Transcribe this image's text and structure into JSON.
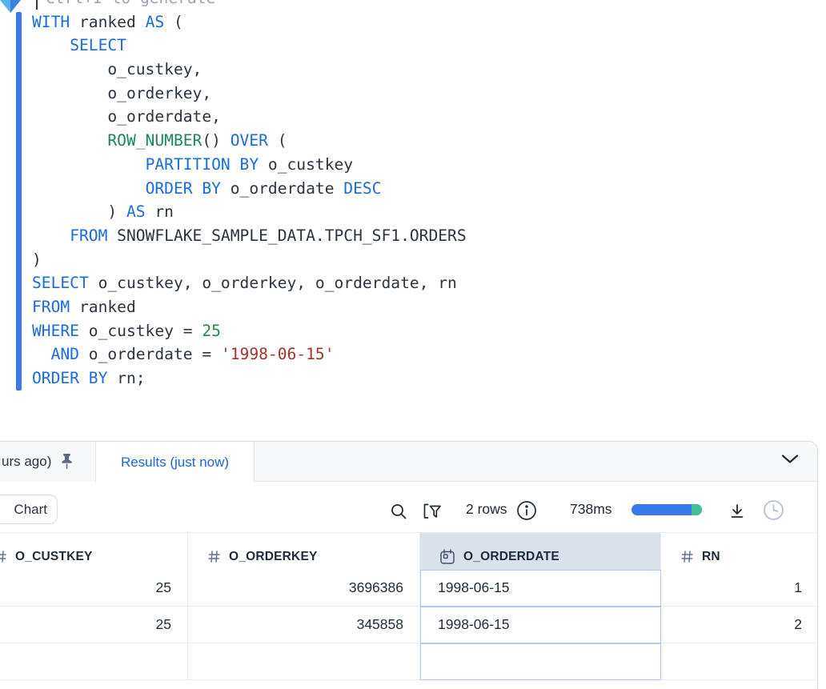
{
  "editor": {
    "assist_hint": "Ctrl+I to generate",
    "syntax_colors": {
      "keyword": "#1A6CE0",
      "function": "#1E8468",
      "number": "#1F8A4C",
      "string": "#A3342A",
      "plain": "#2B3440",
      "hint": "#9AA4B2",
      "selection_gutter_bar": "#3D78E8"
    },
    "code_lines": [
      [
        {
          "t": "WITH",
          "c": "kw"
        },
        {
          "t": " ranked ",
          "c": "pl"
        },
        {
          "t": "AS",
          "c": "kw"
        },
        {
          "t": " (",
          "c": "pl"
        }
      ],
      [
        {
          "t": "    ",
          "c": "pl"
        },
        {
          "t": "SELECT",
          "c": "kw"
        }
      ],
      [
        {
          "t": "        o_custkey,",
          "c": "pl"
        }
      ],
      [
        {
          "t": "        o_orderkey,",
          "c": "pl"
        }
      ],
      [
        {
          "t": "        o_orderdate,",
          "c": "pl"
        }
      ],
      [
        {
          "t": "        ",
          "c": "pl"
        },
        {
          "t": "ROW_NUMBER",
          "c": "fn"
        },
        {
          "t": "() ",
          "c": "pl"
        },
        {
          "t": "OVER",
          "c": "kw"
        },
        {
          "t": " (",
          "c": "pl"
        }
      ],
      [
        {
          "t": "            ",
          "c": "pl"
        },
        {
          "t": "PARTITION BY",
          "c": "kw"
        },
        {
          "t": " o_custkey",
          "c": "pl"
        }
      ],
      [
        {
          "t": "            ",
          "c": "pl"
        },
        {
          "t": "ORDER BY",
          "c": "kw"
        },
        {
          "t": " o_orderdate ",
          "c": "pl"
        },
        {
          "t": "DESC",
          "c": "kw"
        }
      ],
      [
        {
          "t": "        ) ",
          "c": "pl"
        },
        {
          "t": "AS",
          "c": "kw"
        },
        {
          "t": " rn",
          "c": "pl"
        }
      ],
      [
        {
          "t": "    ",
          "c": "pl"
        },
        {
          "t": "FROM",
          "c": "kw"
        },
        {
          "t": " SNOWFLAKE_SAMPLE_DATA.TPCH_SF1.ORDERS",
          "c": "pl"
        }
      ],
      [
        {
          "t": ")",
          "c": "pl"
        }
      ],
      [
        {
          "t": "SELECT",
          "c": "kw"
        },
        {
          "t": " o_custkey, o_orderkey, o_orderdate, rn",
          "c": "pl"
        }
      ],
      [
        {
          "t": "FROM",
          "c": "kw"
        },
        {
          "t": " ranked",
          "c": "pl"
        }
      ],
      [
        {
          "t": "WHERE",
          "c": "kw"
        },
        {
          "t": " o_custkey = ",
          "c": "pl"
        },
        {
          "t": "25",
          "c": "num"
        }
      ],
      [
        {
          "t": "  ",
          "c": "pl"
        },
        {
          "t": "AND",
          "c": "kw"
        },
        {
          "t": " o_orderdate = ",
          "c": "pl"
        },
        {
          "t": "'1998-06-15'",
          "c": "str"
        }
      ],
      [
        {
          "t": "ORDER BY",
          "c": "kw"
        },
        {
          "t": " rn;",
          "c": "pl"
        }
      ]
    ]
  },
  "results_panel": {
    "tabs": {
      "inactive_label": "urs ago)",
      "active_label": "Results (just now)"
    },
    "toolbar": {
      "chart_button": "Chart",
      "row_count": "2 rows",
      "duration": "738ms"
    },
    "table": {
      "columns": [
        {
          "label": "O_CUSTKEY",
          "type_icon": "hash-icon",
          "align": "right",
          "selected": false
        },
        {
          "label": "O_ORDERKEY",
          "type_icon": "hash-icon",
          "align": "right",
          "selected": false
        },
        {
          "label": "O_ORDERDATE",
          "type_icon": "calendar-icon",
          "align": "left",
          "selected": true
        },
        {
          "label": "RN",
          "type_icon": "hash-icon",
          "align": "right",
          "selected": false
        }
      ],
      "rows": [
        [
          "25",
          "3696386",
          "1998-06-15",
          "1"
        ],
        [
          "25",
          "345858",
          "1998-06-15",
          "2"
        ]
      ]
    },
    "colors": {
      "accent_blue": "#1A66E0",
      "progress_blue": "#3779E9",
      "progress_green": "#44BE92",
      "selected_header_bg": "#DBE1EB",
      "selected_column_border": "#AFCBEF"
    }
  },
  "icons": {
    "assist": "copilot-arrow-icon",
    "tab_pin": "pushpin-icon",
    "collapse": "chevron-down-icon",
    "search": "search-icon",
    "filter": "filter-icon",
    "row_info": "info-icon",
    "download": "download-icon",
    "query_duration": "clock-icon",
    "numeric_column": "hash-icon",
    "date_column": "calendar-icon"
  }
}
